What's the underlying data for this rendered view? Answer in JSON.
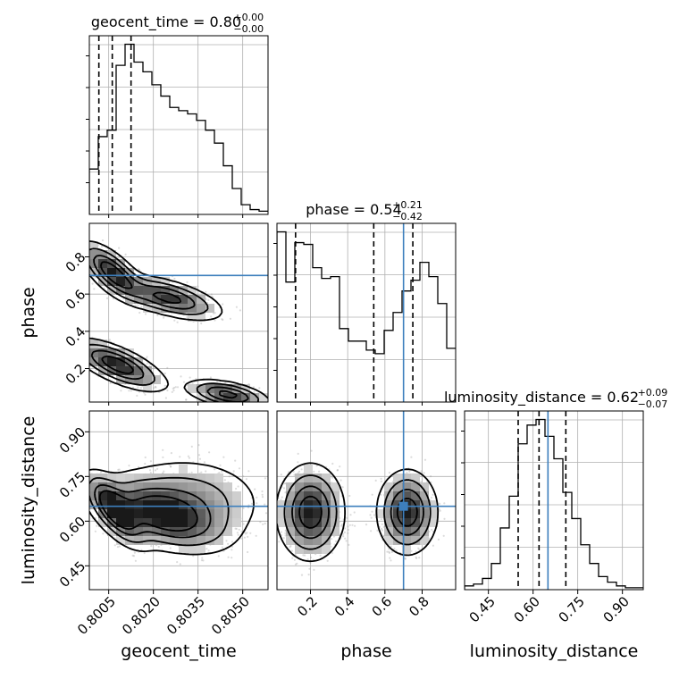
{
  "chart_data": {
    "type": "corner",
    "parameters": [
      "geocent_time",
      "phase",
      "luminosity_distance"
    ],
    "titles": [
      {
        "name": "geocent_time",
        "median": "0.80",
        "plus": "+0.00",
        "minus": "−0.00"
      },
      {
        "name": "phase",
        "median": "0.54",
        "plus": "+0.21",
        "minus": "−0.42"
      },
      {
        "name": "luminosity_distance",
        "median": "0.62",
        "plus": "+0.09",
        "minus": "−0.07"
      }
    ],
    "ranges": {
      "geocent_time": [
        0.79985,
        0.80585
      ],
      "phase": [
        0.02,
        0.98
      ],
      "luminosity_distance": [
        0.37,
        0.97
      ]
    },
    "ticks": {
      "geocent_time": {
        "values": [
          0.8005,
          0.802,
          0.8035,
          0.805
        ],
        "labels": [
          "0.8005",
          "0.8020",
          "0.8035",
          "0.8050"
        ]
      },
      "phase": {
        "values": [
          0.2,
          0.4,
          0.6,
          0.8
        ],
        "labels": [
          "0.2",
          "0.4",
          "0.6",
          "0.8"
        ]
      },
      "luminosity_distance": {
        "values": [
          0.45,
          0.6,
          0.75,
          0.9
        ],
        "labels": [
          "0.45",
          "0.60",
          "0.75",
          "0.90"
        ]
      }
    },
    "truths": {
      "geocent_time": null,
      "phase": 0.7,
      "luminosity_distance": 0.65
    },
    "quantiles": {
      "geocent_time": [
        0.80017,
        0.80062,
        0.80125
      ],
      "phase": [
        0.12,
        0.54,
        0.75
      ],
      "luminosity_distance": [
        0.55,
        0.62,
        0.71
      ]
    },
    "hist_counts": {
      "geocent_time": [
        28,
        48,
        52,
        92,
        105,
        94,
        88,
        80,
        73,
        66,
        64,
        62,
        58,
        52,
        44,
        30,
        16,
        6,
        3,
        2
      ],
      "phase": [
        95,
        67,
        89,
        88,
        75,
        69,
        70,
        41,
        34,
        34,
        29,
        27,
        40,
        50,
        62,
        68,
        78,
        70,
        55,
        30
      ],
      "luminosity_distance": [
        2,
        3,
        6,
        14,
        33,
        50,
        78,
        88,
        91,
        82,
        70,
        52,
        38,
        24,
        14,
        7,
        4,
        2,
        1,
        1
      ]
    },
    "xlabels": [
      "geocent_time",
      "phase",
      "luminosity_distance"
    ],
    "ylabels": [
      "phase",
      "luminosity_distance"
    ],
    "grid": true
  }
}
